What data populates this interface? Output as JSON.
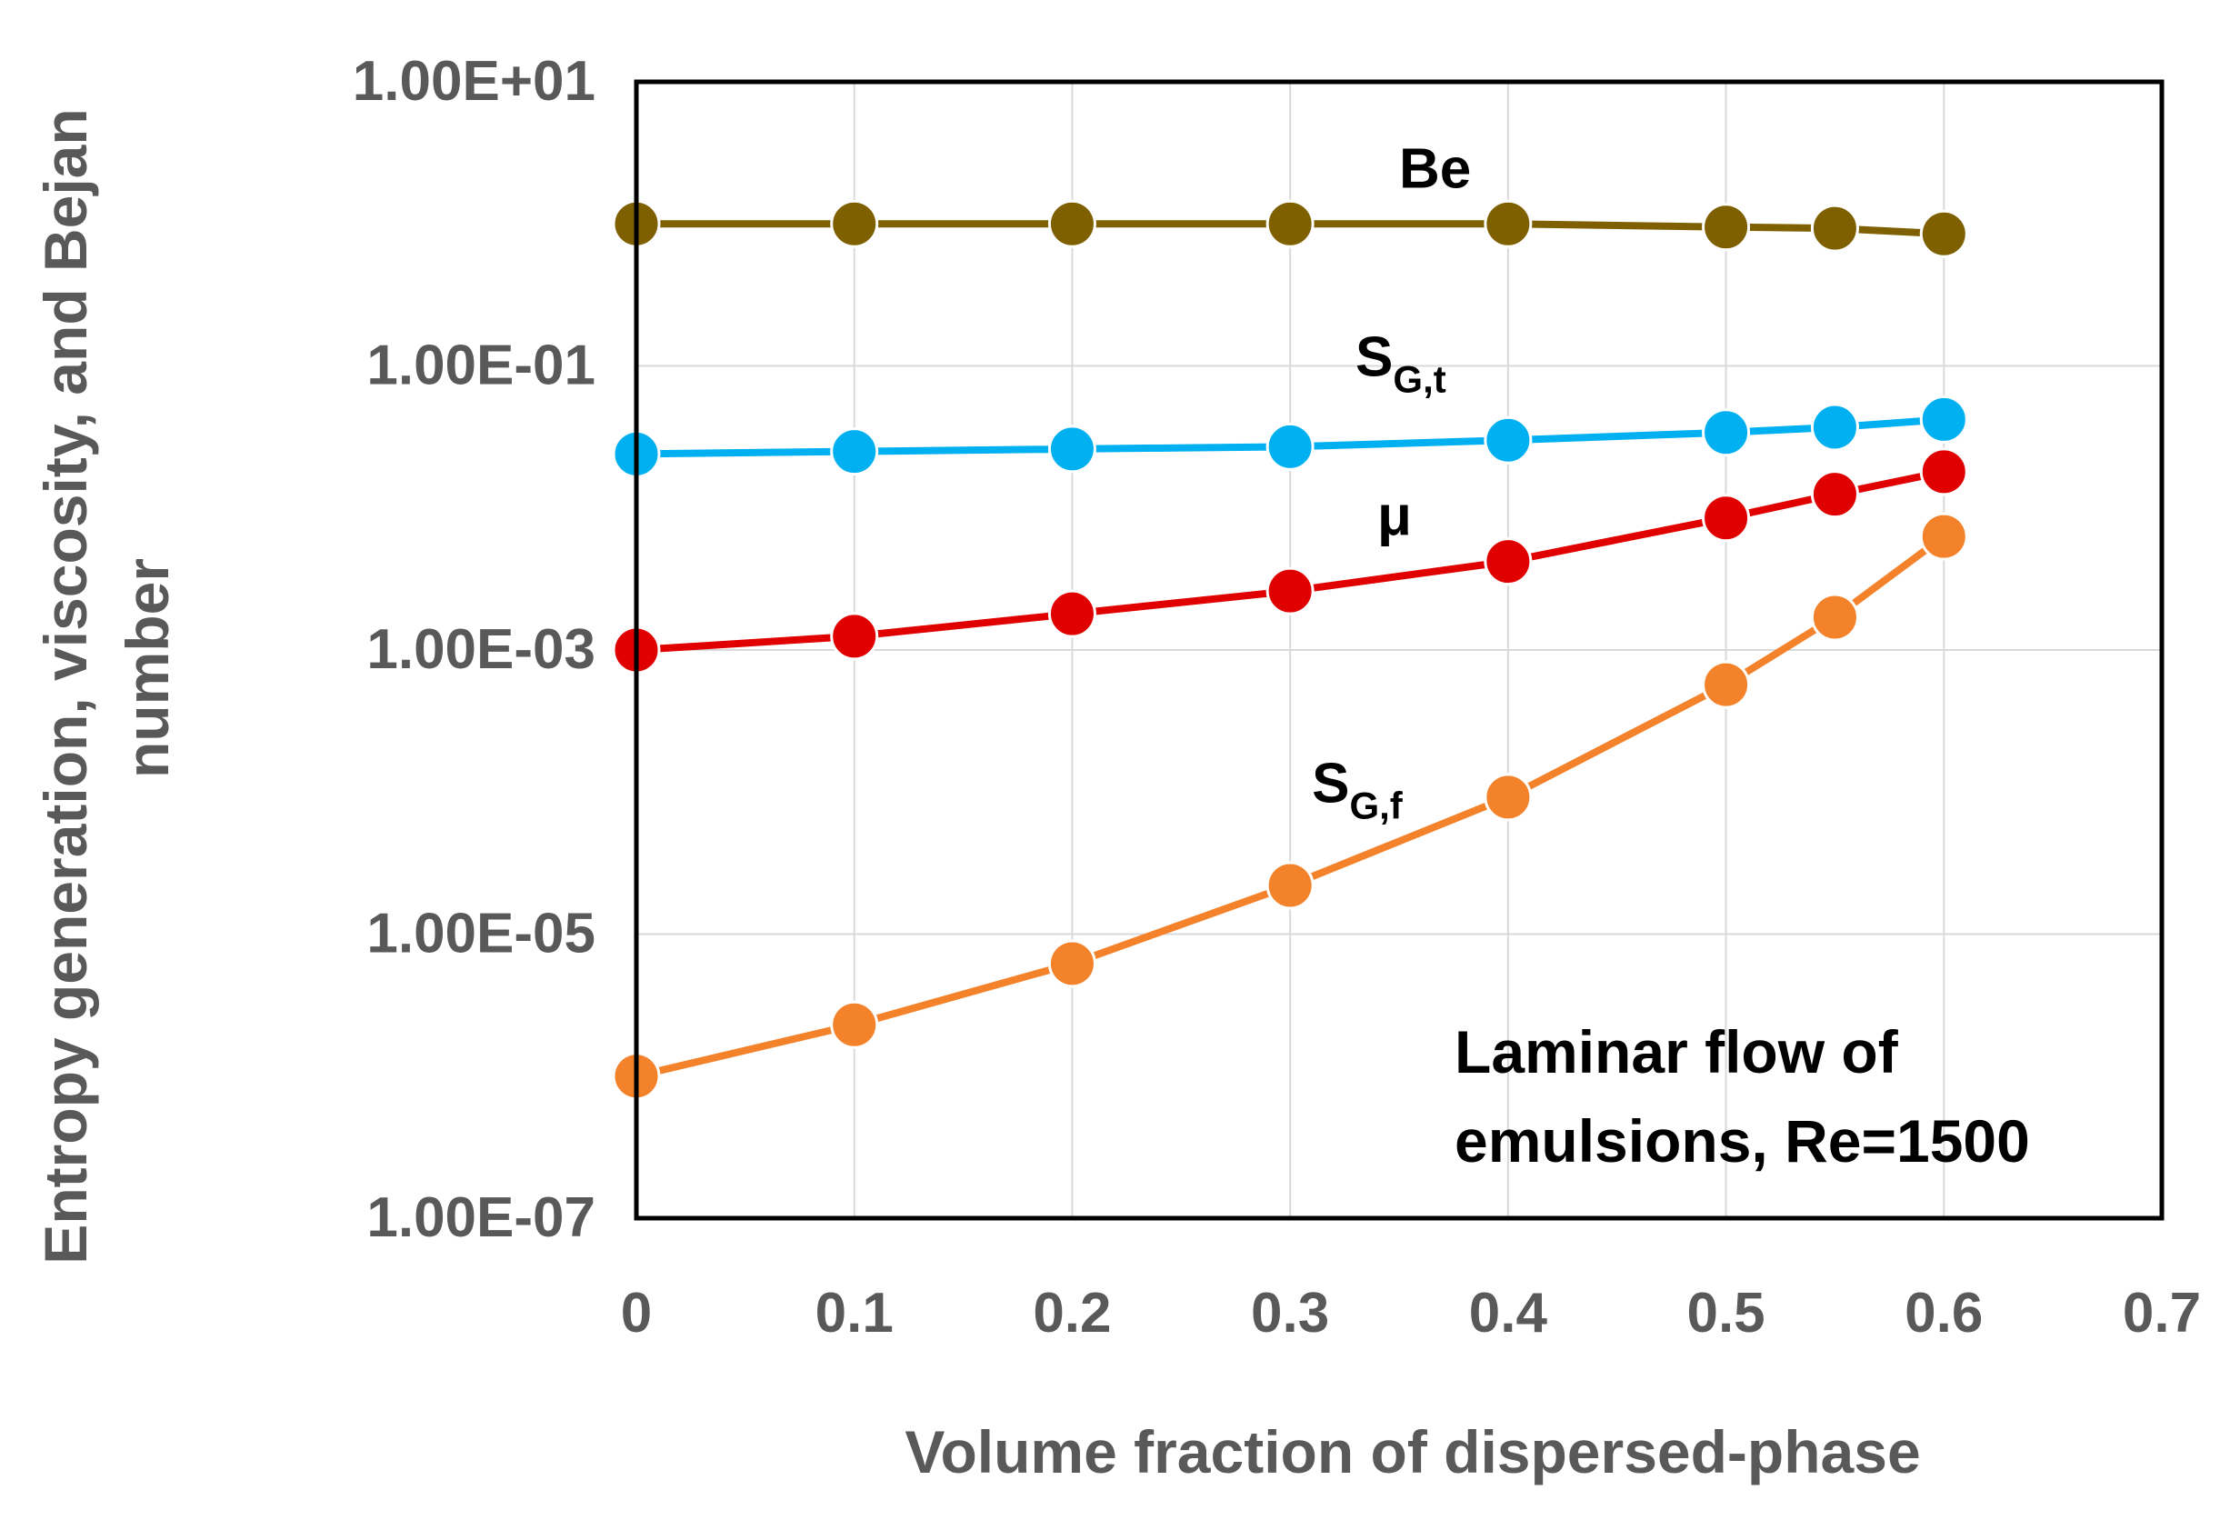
{
  "chart_data": {
    "type": "line",
    "y_scale": "log",
    "xlabel": "Volume fraction of dispersed-phase",
    "ylabel_lines": [
      "Entropy generation, viscosity, and Bejan",
      "number"
    ],
    "xlim": [
      0,
      0.7
    ],
    "ylim": [
      1e-07,
      10
    ],
    "x_ticks": [
      0,
      0.1,
      0.2,
      0.3,
      0.4,
      0.5,
      0.6,
      0.7
    ],
    "x_tick_labels": [
      "0",
      "0.1",
      "0.2",
      "0.3",
      "0.4",
      "0.5",
      "0.6",
      "0.7"
    ],
    "y_ticks": [
      10,
      0.1,
      0.001,
      1e-05,
      1e-07
    ],
    "y_tick_labels": [
      "1.00E+01",
      "1.00E-01",
      "1.00E-03",
      "1.00E-05",
      "1.00E-07"
    ],
    "grid": true,
    "annotation_lines": [
      "Laminar flow of",
      "emulsions, Re=1500"
    ],
    "x": [
      0,
      0.1,
      0.2,
      0.3,
      0.4,
      0.5,
      0.55,
      0.6
    ],
    "series": [
      {
        "name": "Be",
        "label_main": "Be",
        "label_sub": "",
        "color": "#7F6000",
        "values": [
          1.0,
          1.0,
          1.0,
          1.0,
          1.0,
          0.95,
          0.93,
          0.85
        ],
        "label_at": [
          0.35,
          1.8
        ]
      },
      {
        "name": "S_G,t",
        "label_main": "S",
        "label_sub": "G,t",
        "color": "#00B0F0",
        "values": [
          0.024,
          0.025,
          0.026,
          0.027,
          0.03,
          0.034,
          0.037,
          0.042
        ],
        "label_at": [
          0.33,
          0.085
        ]
      },
      {
        "name": "μ",
        "label_main": "μ",
        "label_sub": "",
        "color": "#E00000",
        "values": [
          0.001,
          0.00125,
          0.0018,
          0.0026,
          0.0042,
          0.0085,
          0.0125,
          0.018
        ],
        "label_at": [
          0.34,
          0.0065
        ]
      },
      {
        "name": "S_G,f",
        "label_main": "S",
        "label_sub": "G,f",
        "color": "#F4822A",
        "values": [
          1e-06,
          2.3e-06,
          6.2e-06,
          2.2e-05,
          9.2e-05,
          0.00057,
          0.0017,
          0.0063
        ],
        "label_at": [
          0.31,
          8.5e-05
        ]
      }
    ]
  }
}
